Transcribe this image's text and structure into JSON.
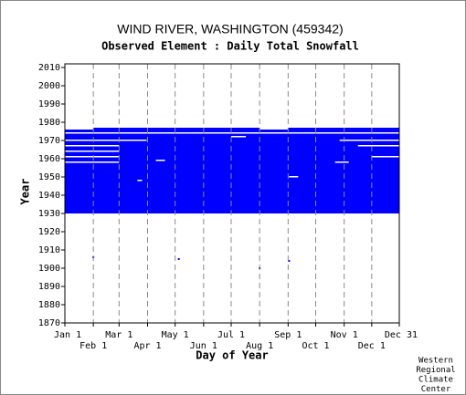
{
  "chart_data": {
    "type": "availability",
    "title": "WIND RIVER, WASHINGTON   (459342)",
    "subtitle": "Observed Element : Daily Total Snowfall",
    "xlabel": "Day of Year",
    "ylabel": "Year",
    "credit": [
      "Western",
      "Regional",
      "Climate",
      "Center"
    ],
    "color": "#0000ff",
    "gap_color": "#ffffff",
    "grid": true,
    "xlim": [
      1,
      365
    ],
    "ylim": [
      1870,
      2012
    ],
    "xticks": [
      {
        "value": 1,
        "label": "Jan 1"
      },
      {
        "value": 32,
        "label": "Feb 1"
      },
      {
        "value": 60,
        "label": "Mar 1"
      },
      {
        "value": 91,
        "label": "Apr 1"
      },
      {
        "value": 121,
        "label": "May 1"
      },
      {
        "value": 152,
        "label": "Jun 1"
      },
      {
        "value": 182,
        "label": "Jul 1"
      },
      {
        "value": 213,
        "label": "Aug 1"
      },
      {
        "value": 244,
        "label": "Sep 1"
      },
      {
        "value": 274,
        "label": "Oct 1"
      },
      {
        "value": 305,
        "label": "Nov 1"
      },
      {
        "value": 335,
        "label": "Dec 1"
      },
      {
        "value": 365,
        "label": "Dec 31"
      }
    ],
    "yticks": [
      1870,
      1880,
      1890,
      1900,
      1910,
      1920,
      1930,
      1940,
      1950,
      1960,
      1970,
      1980,
      1990,
      2000,
      2010
    ],
    "blocks": [
      {
        "x0": 1,
        "x1": 365,
        "y0": 1930,
        "y1": 1976
      },
      {
        "x0": 32,
        "x1": 213,
        "y0": 1976,
        "y1": 1977
      },
      {
        "x0": 244,
        "x1": 365,
        "y0": 1976,
        "y1": 1977
      }
    ],
    "gaps": [
      {
        "x0": 1,
        "x1": 365,
        "year": 1974
      },
      {
        "x0": 182,
        "x1": 198,
        "year": 1972
      },
      {
        "x0": 1,
        "x1": 90,
        "year": 1970
      },
      {
        "x0": 300,
        "x1": 365,
        "year": 1970
      },
      {
        "x0": 1,
        "x1": 60,
        "year": 1967
      },
      {
        "x0": 320,
        "x1": 365,
        "year": 1967
      },
      {
        "x0": 1,
        "x1": 60,
        "year": 1964
      },
      {
        "x0": 1,
        "x1": 60,
        "year": 1961
      },
      {
        "x0": 335,
        "x1": 365,
        "year": 1961
      },
      {
        "x0": 100,
        "x1": 110,
        "year": 1959
      },
      {
        "x0": 295,
        "x1": 310,
        "year": 1958
      },
      {
        "x0": 1,
        "x1": 60,
        "year": 1958
      },
      {
        "x0": 245,
        "x1": 255,
        "year": 1950
      },
      {
        "x0": 80,
        "x1": 85,
        "year": 1948
      }
    ],
    "points": [
      {
        "day": 32,
        "year": 1906
      },
      {
        "day": 125,
        "year": 1905
      },
      {
        "day": 245,
        "year": 1904
      },
      {
        "day": 213,
        "year": 1900
      }
    ]
  }
}
